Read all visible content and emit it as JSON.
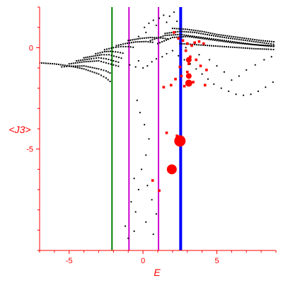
{
  "chart_data": {
    "type": "scatter",
    "title": "",
    "xlabel": "E",
    "ylabel": "<J3>",
    "xlim": [
      -7,
      9
    ],
    "ylim": [
      -10,
      2
    ],
    "grid": false,
    "axis_color": "#ff0000",
    "x_ticks": [
      -5,
      0,
      5
    ],
    "y_ticks": [
      0,
      -5
    ],
    "vertical_lines": [
      {
        "x": -2.1,
        "color": "#008000",
        "style": "solid",
        "weight": "normal"
      },
      {
        "x": -0.95,
        "color": "#cc00cc",
        "style": "solid",
        "weight": "normal"
      },
      {
        "x": 1.05,
        "color": "#cc00cc",
        "style": "solid",
        "weight": "normal"
      },
      {
        "x": 2.55,
        "color": "#0000ff",
        "style": "solid",
        "weight": "heavy"
      }
    ],
    "series": [
      {
        "marker_color": "#000000",
        "marker_size": "small",
        "curves": [
          {
            "x": [
              -7.0,
              -6.0,
              -5.0,
              -4.0,
              -3.0,
              -2.5,
              -2.1
            ],
            "y": [
              -0.75,
              -0.8,
              -0.9,
              -1.05,
              -1.3,
              -1.5,
              -1.75
            ]
          },
          {
            "x": [
              -5.5,
              -5.0,
              -4.0,
              -3.0,
              -2.5,
              -2.1
            ],
            "y": [
              -0.95,
              -0.92,
              -0.9,
              -1.05,
              -1.15,
              -1.3
            ]
          },
          {
            "x": [
              -5.0,
              -4.0,
              -3.0,
              -2.5,
              -2.0,
              -1.5
            ],
            "y": [
              -0.8,
              -0.7,
              -0.65,
              -0.75,
              -0.85,
              -0.95
            ]
          },
          {
            "x": [
              -4.5,
              -3.5,
              -3.0,
              -2.5,
              -2.0,
              -1.5
            ],
            "y": [
              -0.65,
              -0.55,
              -0.5,
              -0.55,
              -0.65,
              -0.75
            ]
          },
          {
            "x": [
              -4.0,
              -3.2,
              -2.8,
              -2.3,
              -1.8,
              -1.3
            ],
            "y": [
              -0.5,
              -0.4,
              -0.35,
              -0.35,
              -0.45,
              -0.55
            ]
          },
          {
            "x": [
              -3.2,
              -2.6,
              -2.2,
              -1.7,
              -1.2
            ],
            "y": [
              -0.3,
              -0.2,
              -0.18,
              -0.22,
              -0.3
            ]
          },
          {
            "x": [
              -2.6,
              -2.0,
              -1.5,
              -1.0,
              -0.5
            ],
            "y": [
              -0.1,
              0.0,
              0.05,
              0.05,
              0.0
            ]
          },
          {
            "x": [
              -1.8,
              -1.2,
              -0.5,
              0.2,
              0.8
            ],
            "y": [
              0.1,
              0.2,
              0.28,
              0.3,
              0.25
            ]
          },
          {
            "x": [
              -1.0,
              -0.2,
              0.5,
              1.2,
              1.8
            ],
            "y": [
              0.35,
              0.45,
              0.5,
              0.48,
              0.42
            ]
          },
          {
            "x": [
              0.5,
              1.5,
              2.5,
              3.5,
              4.5,
              5.5,
              6.5,
              7.5,
              8.5,
              9.0
            ],
            "y": [
              0.35,
              0.6,
              0.65,
              0.55,
              0.45,
              0.35,
              0.25,
              0.15,
              0.08,
              0.05
            ]
          },
          {
            "x": [
              1.0,
              2.0,
              3.0,
              4.0,
              5.0,
              6.0,
              7.0,
              8.0,
              9.0
            ],
            "y": [
              0.2,
              0.5,
              0.55,
              0.45,
              0.35,
              0.25,
              0.18,
              0.12,
              0.08
            ]
          },
          {
            "x": [
              1.5,
              2.5,
              3.5,
              4.5,
              5.5,
              6.5,
              7.5,
              8.5,
              9.0
            ],
            "y": [
              0.7,
              0.8,
              0.75,
              0.62,
              0.5,
              0.4,
              0.3,
              0.2,
              0.15
            ]
          },
          {
            "x": [
              2.0,
              3.0,
              4.0,
              5.0,
              6.0,
              7.0,
              8.0,
              9.0
            ],
            "y": [
              0.95,
              0.9,
              0.8,
              0.65,
              0.55,
              0.45,
              0.35,
              0.28
            ]
          },
          {
            "x": [
              2.5,
              3.5,
              4.5,
              5.5,
              6.5,
              7.5,
              8.5,
              9.0
            ],
            "y": [
              0.2,
              0.15,
              0.1,
              0.05,
              0.0,
              -0.05,
              -0.08,
              -0.1
            ]
          }
        ],
        "points": [
          [
            -0.9,
            -0.85
          ],
          [
            -0.5,
            -0.95
          ],
          [
            0.0,
            -1.0
          ],
          [
            0.3,
            -0.9
          ],
          [
            0.6,
            -0.7
          ],
          [
            -0.3,
            -0.65
          ],
          [
            0.9,
            -0.55
          ],
          [
            1.3,
            -0.45
          ],
          [
            1.6,
            -0.3
          ],
          [
            2.0,
            -0.15
          ],
          [
            2.4,
            -0.4
          ],
          [
            2.8,
            -0.6
          ],
          [
            3.2,
            -0.8
          ],
          [
            3.6,
            -1.05
          ],
          [
            4.0,
            -1.3
          ],
          [
            4.4,
            -1.55
          ],
          [
            4.8,
            -1.8
          ],
          [
            5.3,
            -2.0
          ],
          [
            5.8,
            -2.15
          ],
          [
            6.3,
            -2.3
          ],
          [
            6.8,
            -2.35
          ],
          [
            7.3,
            -2.3
          ],
          [
            7.8,
            -2.15
          ],
          [
            8.3,
            -1.95
          ],
          [
            8.8,
            -1.7
          ],
          [
            6.0,
            -1.6
          ],
          [
            6.5,
            -1.4
          ],
          [
            7.0,
            -1.1
          ],
          [
            7.6,
            -0.85
          ],
          [
            8.2,
            -0.6
          ],
          [
            8.7,
            -0.45
          ],
          [
            5.5,
            -1.2
          ],
          [
            5.0,
            -0.9
          ],
          [
            4.5,
            -0.6
          ],
          [
            3.8,
            -0.35
          ],
          [
            2.9,
            0.0
          ],
          [
            0.1,
            1.0
          ],
          [
            0.4,
            1.2
          ],
          [
            0.7,
            1.35
          ],
          [
            1.1,
            1.45
          ],
          [
            1.4,
            1.6
          ],
          [
            1.8,
            1.55
          ],
          [
            2.1,
            1.75
          ],
          [
            0.9,
            1.1
          ],
          [
            1.6,
            1.25
          ],
          [
            2.3,
            1.3
          ],
          [
            0.2,
            0.75
          ],
          [
            -0.3,
            0.55
          ],
          [
            -0.4,
            -2.6
          ],
          [
            -0.2,
            -3.2
          ],
          [
            0.1,
            -3.8
          ],
          [
            0.4,
            -4.5
          ],
          [
            0.2,
            -5.3
          ],
          [
            -0.1,
            -6.0
          ],
          [
            -0.6,
            -6.45
          ],
          [
            -0.3,
            -7.0
          ],
          [
            -0.8,
            -7.6
          ],
          [
            -0.5,
            -8.1
          ],
          [
            0.3,
            -6.8
          ],
          [
            0.6,
            -7.5
          ],
          [
            0.9,
            -8.2
          ],
          [
            0.7,
            -9.2
          ],
          [
            -0.6,
            -9.05
          ],
          [
            -1.2,
            -8.8
          ],
          [
            -1.0,
            -9.4
          ],
          [
            0.2,
            -8.6
          ]
        ]
      },
      {
        "marker_color": "#ff0000",
        "marker_size": "medium",
        "points": [
          [
            2.1,
            0.75
          ],
          [
            2.4,
            0.45
          ],
          [
            2.7,
            0.35
          ],
          [
            3.0,
            0.2
          ],
          [
            3.3,
            0.1
          ],
          [
            3.5,
            0.25
          ],
          [
            3.8,
            0.3
          ],
          [
            4.1,
            0.2
          ],
          [
            2.9,
            -0.15
          ],
          [
            3.2,
            -0.45
          ],
          [
            3.6,
            -0.6
          ],
          [
            3.9,
            -0.9
          ],
          [
            4.3,
            -1.1
          ],
          [
            3.0,
            -1.2
          ],
          [
            2.6,
            -1.4
          ],
          [
            2.2,
            -1.55
          ],
          [
            2.8,
            -1.9
          ],
          [
            3.4,
            -1.7
          ],
          [
            4.2,
            -1.85
          ],
          [
            3.1,
            -0.8
          ],
          [
            2.5,
            -0.95
          ],
          [
            1.4,
            -1.95
          ],
          [
            1.9,
            -1.85
          ],
          [
            2.3,
            -4.35
          ],
          [
            1.6,
            -4.2
          ],
          [
            1.1,
            -7.05
          ],
          [
            0.65,
            -6.55
          ]
        ]
      },
      {
        "marker_color": "#ff0000",
        "marker_size": "large",
        "points": [
          [
            3.1,
            -0.6
          ],
          [
            3.1,
            -1.4
          ],
          [
            3.1,
            -1.75
          ],
          [
            2.5,
            -4.6
          ],
          [
            1.95,
            -6.0
          ]
        ],
        "radii": [
          4,
          4,
          5,
          8,
          7
        ]
      }
    ]
  }
}
